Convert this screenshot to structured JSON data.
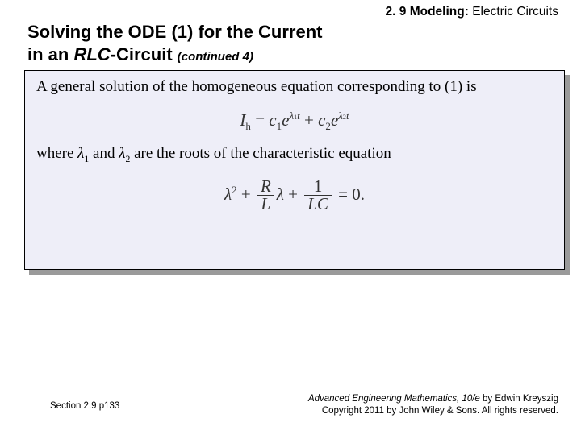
{
  "header": {
    "section_number": "2. 9",
    "section_label_strong": "Modeling:",
    "section_label_rest": "  Electric Circuits"
  },
  "title": {
    "line1": "Solving the ODE (1) for the Current",
    "line2_a": "in an ",
    "line2_em": "RLC",
    "line2_b": "-Circuit ",
    "continued": "(continued 4)"
  },
  "body": {
    "para1": "A general solution of the homogeneous equation corresponding to (1) is",
    "para2_a": "where ",
    "para2_b": " and ",
    "para2_c": " are the roots of the characteristic equation",
    "lambda1": "λ",
    "lambda1_sub": "1",
    "lambda2": "λ",
    "lambda2_sub": "2"
  },
  "equations": {
    "eq1": {
      "Ih": "I",
      "h": "h",
      "eq": " = ",
      "c1": "c",
      "s1": "1",
      "e": "e",
      "lam": "λ",
      "ls1": "1",
      "t": "t",
      "plus": " + ",
      "c2": "c",
      "s2": "2",
      "ls2": "2"
    },
    "eq2": {
      "lam": "λ",
      "sq": "2",
      "plus": " + ",
      "R": "R",
      "L": "L",
      "one": "1",
      "LC": "LC",
      "eq0": " = 0."
    }
  },
  "footer": {
    "left": "Section 2.9  p133",
    "right_title": "Advanced Engineering Mathematics, 10/e",
    "right_a": " by Edwin Kreyszig",
    "right_b": "Copyright 2011 by John Wiley & Sons.  All rights reserved."
  },
  "colors": {
    "box_bg": "#eeeef8",
    "shadow": "#9a9a9a",
    "text": "#000000",
    "eq_text": "#333333"
  }
}
